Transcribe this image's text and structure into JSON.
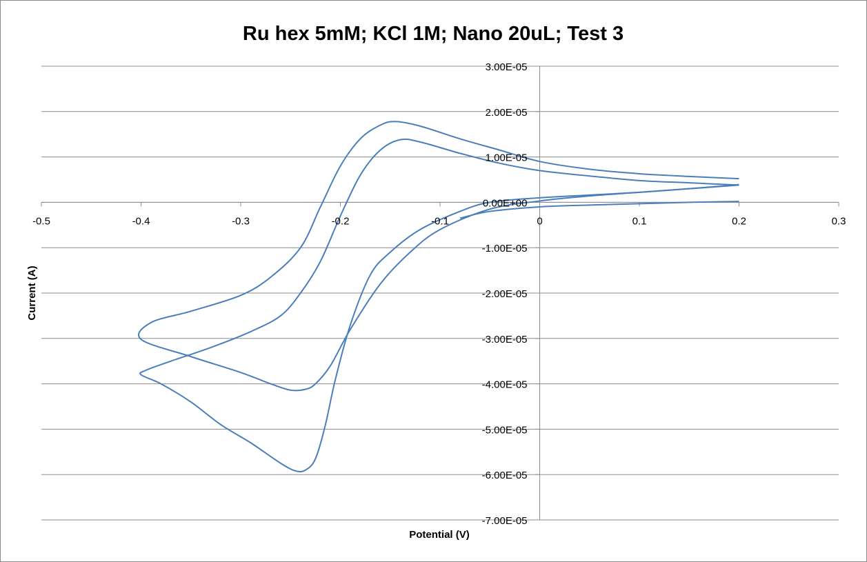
{
  "chart_data": {
    "type": "line",
    "title": "Ru hex 5mM; KCl 1M; Nano 20uL; Test 3",
    "xlabel": "Potential (V)",
    "ylabel": "Current (A)",
    "xlim": [
      -0.5,
      0.3
    ],
    "ylim": [
      -7e-05,
      3e-05
    ],
    "x_ticks": [
      -0.5,
      -0.4,
      -0.3,
      -0.2,
      -0.1,
      0,
      0.1,
      0.2,
      0.3
    ],
    "x_tick_labels": [
      "-0.5",
      "-0.4",
      "-0.3",
      "-0.2",
      "-0.1",
      "0",
      "0.1",
      "0.2",
      "0.3"
    ],
    "y_ticks": [
      3e-05,
      2e-05,
      1e-05,
      0,
      -1e-05,
      -2e-05,
      -3e-05,
      -4e-05,
      -5e-05,
      -6e-05,
      -7e-05
    ],
    "y_tick_labels": [
      "3.00E-05",
      "2.00E-05",
      "1.00E-05",
      "0.00E+00",
      "-1.00E-05",
      "-2.00E-05",
      "-3.00E-05",
      "-4.00E-05",
      "-5.00E-05",
      "-6.00E-05",
      "-7.00E-05"
    ],
    "grid": true,
    "legend": "none",
    "series_color": "#4a7ebb",
    "series": [
      {
        "values": [
          [
            0.2,
            3.9e-06
          ],
          [
            0.15,
            3e-06
          ],
          [
            0.1,
            2.2e-06
          ],
          [
            0.05,
            1.4e-06
          ],
          [
            0.0,
            3e-07
          ],
          [
            -0.05,
            -1.5e-06
          ],
          [
            -0.1,
            -6e-06
          ],
          [
            -0.13,
            -1.1e-05
          ],
          [
            -0.16,
            -1.8e-05
          ],
          [
            -0.19,
            -2.8e-05
          ],
          [
            -0.21,
            -3.6e-05
          ],
          [
            -0.225,
            -4e-05
          ],
          [
            -0.235,
            -4.12e-05
          ],
          [
            -0.25,
            -4.14e-05
          ],
          [
            -0.27,
            -4e-05
          ],
          [
            -0.3,
            -3.75e-05
          ],
          [
            -0.35,
            -3.4e-05
          ],
          [
            -0.4,
            -3.02e-05
          ],
          [
            -0.39,
            -2.65e-05
          ],
          [
            -0.35,
            -2.4e-05
          ],
          [
            -0.3,
            -2.05e-05
          ],
          [
            -0.27,
            -1.65e-05
          ],
          [
            -0.24,
            -1e-05
          ],
          [
            -0.22,
            -1e-06
          ],
          [
            -0.2,
            8e-06
          ],
          [
            -0.18,
            1.4e-05
          ],
          [
            -0.16,
            1.7e-05
          ],
          [
            -0.145,
            1.78e-05
          ],
          [
            -0.12,
            1.68e-05
          ],
          [
            -0.08,
            1.4e-05
          ],
          [
            -0.04,
            1.15e-05
          ],
          [
            0.0,
            9e-06
          ],
          [
            0.05,
            7.3e-06
          ],
          [
            0.1,
            6.3e-06
          ],
          [
            0.15,
            5.7e-06
          ],
          [
            0.2,
            5.2e-06
          ]
        ]
      },
      {
        "values": [
          [
            0.2,
            3.8e-06
          ],
          [
            0.15,
            3e-06
          ],
          [
            0.1,
            2.2e-06
          ],
          [
            0.05,
            1.6e-06
          ],
          [
            0.0,
            1e-06
          ],
          [
            -0.05,
            0.0
          ],
          [
            -0.08,
            -2e-06
          ],
          [
            -0.12,
            -6e-06
          ],
          [
            -0.15,
            -1.1e-05
          ],
          [
            -0.17,
            -1.6e-05
          ],
          [
            -0.19,
            -2.7e-05
          ],
          [
            -0.205,
            -3.9e-05
          ],
          [
            -0.215,
            -4.9e-05
          ],
          [
            -0.225,
            -5.65e-05
          ],
          [
            -0.235,
            -5.9e-05
          ],
          [
            -0.245,
            -5.92e-05
          ],
          [
            -0.26,
            -5.75e-05
          ],
          [
            -0.29,
            -5.3e-05
          ],
          [
            -0.32,
            -4.9e-05
          ],
          [
            -0.35,
            -4.4e-05
          ],
          [
            -0.38,
            -4e-05
          ],
          [
            -0.4,
            -3.8e-05
          ],
          [
            -0.395,
            -3.7e-05
          ],
          [
            -0.37,
            -3.5e-05
          ],
          [
            -0.33,
            -3.2e-05
          ],
          [
            -0.29,
            -2.85e-05
          ],
          [
            -0.26,
            -2.5e-05
          ],
          [
            -0.24,
            -2e-05
          ],
          [
            -0.22,
            -1.3e-05
          ],
          [
            -0.2,
            -3e-06
          ],
          [
            -0.18,
            6e-06
          ],
          [
            -0.16,
            1.15e-05
          ],
          [
            -0.14,
            1.38e-05
          ],
          [
            -0.12,
            1.33e-05
          ],
          [
            -0.08,
            1.08e-05
          ],
          [
            -0.04,
            8.6e-06
          ],
          [
            0.0,
            7e-06
          ],
          [
            0.05,
            5.8e-06
          ],
          [
            0.1,
            4.8e-06
          ],
          [
            0.15,
            4.3e-06
          ],
          [
            0.2,
            3.8e-06
          ]
        ]
      },
      {
        "values": [
          [
            0.2,
            2e-07
          ],
          [
            0.15,
            0.0
          ],
          [
            0.1,
            -3e-07
          ],
          [
            0.05,
            -6e-07
          ],
          [
            0.0,
            -1e-06
          ],
          [
            -0.05,
            -2e-06
          ],
          [
            -0.08,
            -3.5e-06
          ]
        ]
      }
    ]
  }
}
